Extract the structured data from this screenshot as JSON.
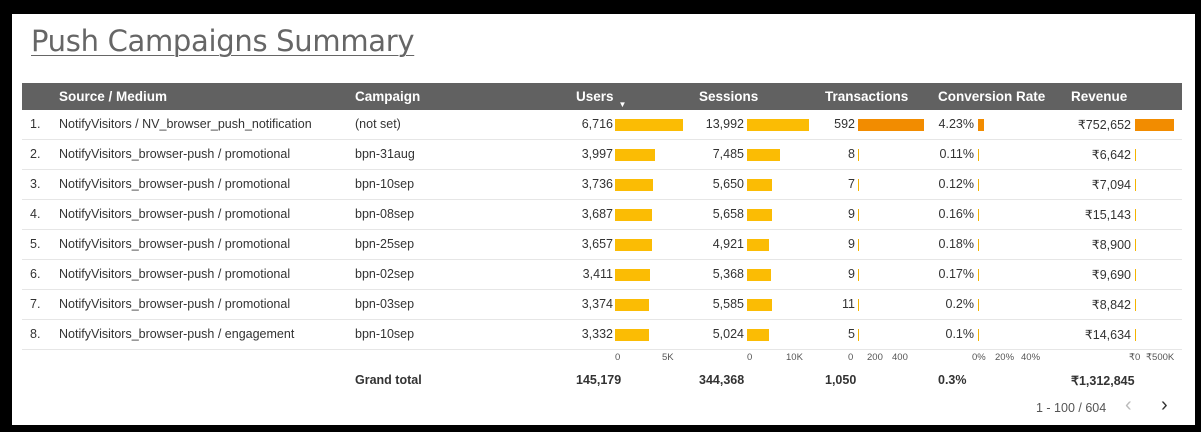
{
  "title": "Push Campaigns Summary",
  "header": {
    "source_medium": "Source / Medium",
    "campaign": "Campaign",
    "users": "Users",
    "sort_indicator": "▼",
    "sessions": "Sessions",
    "transactions": "Transactions",
    "conversion_rate": "Conversion Rate",
    "revenue": "Revenue"
  },
  "rows": [
    {
      "idx": "1.",
      "source": "NotifyVisitors / NV_browser_push_notification",
      "campaign": "(not set)",
      "users": "6,716",
      "users_v": 6716,
      "sessions": "13,992",
      "sessions_v": 13992,
      "transactions": "592",
      "transactions_v": 592,
      "conv": "4.23%",
      "conv_v": 4.23,
      "revenue": "₹752,652",
      "revenue_v": 752652
    },
    {
      "idx": "2.",
      "source": "NotifyVisitors_browser-push / promotional",
      "campaign": "bpn-31aug",
      "users": "3,997",
      "users_v": 3997,
      "sessions": "7,485",
      "sessions_v": 7485,
      "transactions": "8",
      "transactions_v": 8,
      "conv": "0.11%",
      "conv_v": 0.11,
      "revenue": "₹6,642",
      "revenue_v": 6642
    },
    {
      "idx": "3.",
      "source": "NotifyVisitors_browser-push / promotional",
      "campaign": "bpn-10sep",
      "users": "3,736",
      "users_v": 3736,
      "sessions": "5,650",
      "sessions_v": 5650,
      "transactions": "7",
      "transactions_v": 7,
      "conv": "0.12%",
      "conv_v": 0.12,
      "revenue": "₹7,094",
      "revenue_v": 7094
    },
    {
      "idx": "4.",
      "source": "NotifyVisitors_browser-push / promotional",
      "campaign": "bpn-08sep",
      "users": "3,687",
      "users_v": 3687,
      "sessions": "5,658",
      "sessions_v": 5658,
      "transactions": "9",
      "transactions_v": 9,
      "conv": "0.16%",
      "conv_v": 0.16,
      "revenue": "₹15,143",
      "revenue_v": 15143
    },
    {
      "idx": "5.",
      "source": "NotifyVisitors_browser-push / promotional",
      "campaign": "bpn-25sep",
      "users": "3,657",
      "users_v": 3657,
      "sessions": "4,921",
      "sessions_v": 4921,
      "transactions": "9",
      "transactions_v": 9,
      "conv": "0.18%",
      "conv_v": 0.18,
      "revenue": "₹8,900",
      "revenue_v": 8900
    },
    {
      "idx": "6.",
      "source": "NotifyVisitors_browser-push / promotional",
      "campaign": "bpn-02sep",
      "users": "3,411",
      "users_v": 3411,
      "sessions": "5,368",
      "sessions_v": 5368,
      "transactions": "9",
      "transactions_v": 9,
      "conv": "0.17%",
      "conv_v": 0.17,
      "revenue": "₹9,690",
      "revenue_v": 9690
    },
    {
      "idx": "7.",
      "source": "NotifyVisitors_browser-push / promotional",
      "campaign": "bpn-03sep",
      "users": "3,374",
      "users_v": 3374,
      "sessions": "5,585",
      "sessions_v": 5585,
      "transactions": "11",
      "transactions_v": 11,
      "conv": "0.2%",
      "conv_v": 0.2,
      "revenue": "₹8,842",
      "revenue_v": 8842
    },
    {
      "idx": "8.",
      "source": "NotifyVisitors_browser-push / engagement",
      "campaign": "bpn-10sep",
      "users": "3,332",
      "users_v": 3332,
      "sessions": "5,024",
      "sessions_v": 5024,
      "transactions": "5",
      "transactions_v": 5,
      "conv": "0.1%",
      "conv_v": 0.1,
      "revenue": "₹14,634",
      "revenue_v": 14634
    }
  ],
  "axes": {
    "users": [
      "0",
      "5K"
    ],
    "sessions": [
      "0",
      "10K"
    ],
    "transactions": [
      "0",
      "200",
      "400"
    ],
    "conversion": [
      "0%",
      "20%",
      "40%"
    ],
    "revenue": [
      "₹0",
      "₹500K"
    ]
  },
  "grand_total": {
    "label": "Grand total",
    "users": "145,179",
    "sessions": "344,368",
    "transactions": "1,050",
    "conversion": "0.3%",
    "revenue": "₹1,312,845"
  },
  "pagination": {
    "range": "1 - 100 / 604",
    "prev": "‹",
    "next": "›"
  },
  "colors": {
    "bar_yellow": "#fbbc04",
    "bar_orange": "#f28c00",
    "header_bg": "#616161"
  }
}
